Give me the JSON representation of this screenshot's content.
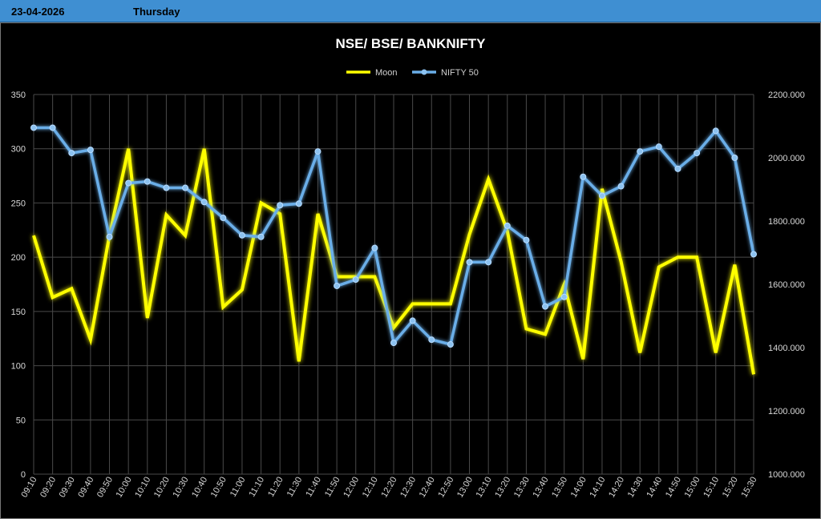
{
  "header": {
    "date": "23-04-2026",
    "day": "Thursday"
  },
  "chart_data": {
    "type": "line",
    "title": "NSE/ BSE/ BANKNIFTY",
    "legend_position": "top-center",
    "grid": true,
    "categories": [
      "09:10",
      "09:20",
      "09:30",
      "09:40",
      "09:50",
      "10:00",
      "10:10",
      "10:20",
      "10:30",
      "10:40",
      "10:50",
      "11:00",
      "11:10",
      "11:20",
      "11:30",
      "11:40",
      "11:50",
      "12:00",
      "12:10",
      "12:20",
      "12:30",
      "12:40",
      "12:50",
      "13:00",
      "13:10",
      "13:20",
      "13:30",
      "13:40",
      "13:50",
      "14:00",
      "14:10",
      "14:20",
      "14:30",
      "14:40",
      "14:50",
      "15:00",
      "15:10",
      "15:20",
      "15:30"
    ],
    "y_left": {
      "min": 0,
      "max": 350,
      "ticks": [
        "0",
        "50",
        "100",
        "150",
        "200",
        "250",
        "300",
        "350"
      ]
    },
    "y_right": {
      "min": 1000,
      "max": 2200,
      "ticks": [
        "1000.000",
        "1200.000",
        "1400.000",
        "1600.000",
        "1800.000",
        "2000.000",
        "2200.000"
      ]
    },
    "series": [
      {
        "name": "Moon",
        "axis": "left",
        "color": "#ffff00",
        "values": [
          220,
          163,
          171,
          124,
          220,
          300,
          144,
          239,
          220,
          300,
          154,
          170,
          250,
          240,
          104,
          240,
          182,
          182,
          182,
          135,
          157,
          157,
          157,
          221,
          272,
          224,
          134,
          129,
          175,
          106,
          263,
          196,
          112,
          191,
          200,
          200,
          112,
          193,
          92
        ]
      },
      {
        "name": "NIFTY 50",
        "axis": "right",
        "color": "#6aaee8",
        "values": [
          2095,
          2095,
          2015,
          2025,
          1750,
          1920,
          1925,
          1905,
          1905,
          1860,
          1810,
          1755,
          1750,
          1850,
          1855,
          2020,
          1595,
          1615,
          1715,
          1415,
          1485,
          1425,
          1410,
          1670,
          1670,
          1785,
          1740,
          1530,
          1560,
          1940,
          1880,
          1910,
          2020,
          2035,
          1965,
          2015,
          2085,
          2000,
          1695
        ]
      }
    ]
  }
}
